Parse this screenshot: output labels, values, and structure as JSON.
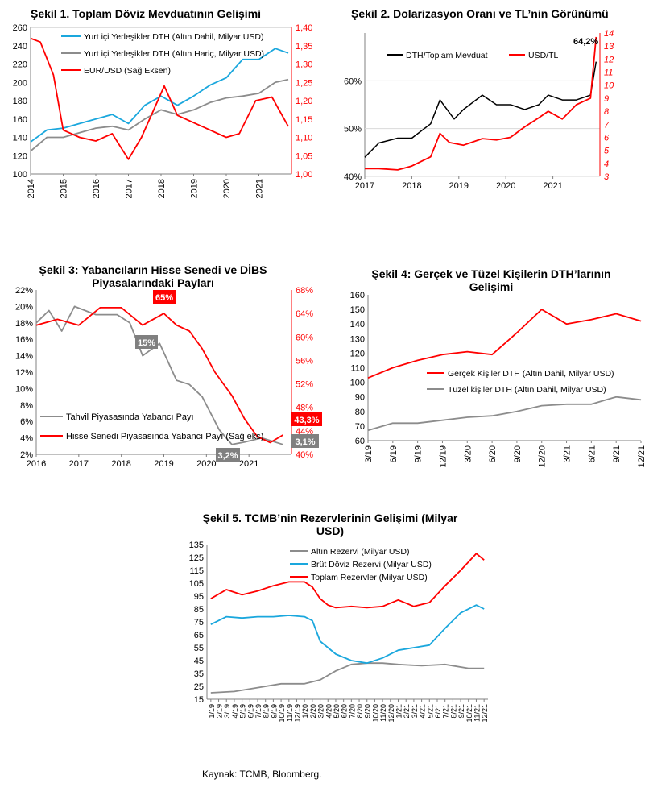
{
  "colors": {
    "red": "#ff0000",
    "blue": "#1aa7dd",
    "gray": "#8c8c8c",
    "black": "#000000"
  },
  "source": "Kaynak: TCMB, Bloomberg.",
  "chart_data": [
    {
      "id": "c1",
      "type": "line",
      "title": "Şekil 1. Toplam Döviz Mevduatının Gelişimi",
      "x_ticks": [
        "2014",
        "2015",
        "2016",
        "2017",
        "2018",
        "2019",
        "2020",
        "2021"
      ],
      "ylim": [
        100,
        260
      ],
      "y_ticks": [
        "100",
        "120",
        "140",
        "160",
        "180",
        "200",
        "220",
        "240",
        "260"
      ],
      "y2lim": [
        1.0,
        1.4
      ],
      "y2_ticks": [
        "1,00",
        "1,05",
        "1,10",
        "1,15",
        "1,20",
        "1,25",
        "1,30",
        "1,35",
        "1,40"
      ],
      "legend_position": "top",
      "series": [
        {
          "name": "Yurt içi Yerleşikler DTH (Altın Dahil, Milyar USD)",
          "color": "blue",
          "axis": "left",
          "x": [
            2014.0,
            2014.5,
            2015.0,
            2015.5,
            2016.0,
            2016.5,
            2017.0,
            2017.5,
            2018.0,
            2018.5,
            2019.0,
            2019.5,
            2020.0,
            2020.5,
            2021.0,
            2021.5,
            2021.9
          ],
          "values": [
            135,
            148,
            150,
            155,
            160,
            165,
            155,
            175,
            185,
            175,
            185,
            197,
            205,
            225,
            225,
            237,
            232
          ]
        },
        {
          "name": "Yurt içi Yerleşikler DTH (Altın Hariç, Milyar USD)",
          "color": "gray",
          "axis": "left",
          "x": [
            2014.0,
            2014.5,
            2015.0,
            2015.5,
            2016.0,
            2016.5,
            2017.0,
            2017.5,
            2018.0,
            2018.5,
            2019.0,
            2019.5,
            2020.0,
            2020.5,
            2021.0,
            2021.5,
            2021.9
          ],
          "values": [
            125,
            140,
            140,
            145,
            150,
            152,
            148,
            160,
            170,
            165,
            170,
            178,
            183,
            185,
            188,
            200,
            203
          ]
        },
        {
          "name": "EUR/USD (Sağ Eksen)",
          "color": "red",
          "axis": "right",
          "x": [
            2014.0,
            2014.3,
            2014.7,
            2015.0,
            2015.5,
            2016.0,
            2016.5,
            2017.0,
            2017.4,
            2017.8,
            2018.1,
            2018.5,
            2019.0,
            2019.5,
            2020.0,
            2020.4,
            2020.9,
            2021.4,
            2021.9
          ],
          "values": [
            1.37,
            1.36,
            1.27,
            1.12,
            1.1,
            1.09,
            1.11,
            1.04,
            1.1,
            1.18,
            1.24,
            1.16,
            1.14,
            1.12,
            1.1,
            1.11,
            1.2,
            1.21,
            1.13
          ]
        }
      ]
    },
    {
      "id": "c2",
      "type": "line",
      "title": "Şekil 2. Dolarizasyon Oranı ve TL’nin Görünümü",
      "x_ticks": [
        "2017",
        "2018",
        "2019",
        "2020",
        "2021"
      ],
      "ylim": [
        40,
        70
      ],
      "y_ticks": [
        "40%",
        "50%",
        "60%"
      ],
      "y2lim": [
        3,
        14
      ],
      "y2_ticks": [
        "3",
        "4",
        "5",
        "6",
        "7",
        "8",
        "9",
        "10",
        "11",
        "12",
        "13",
        "14"
      ],
      "annotation": "64,2%",
      "legend_position": "top",
      "series": [
        {
          "name": "DTH/Toplam Mevduat",
          "color": "black",
          "axis": "left",
          "x": [
            2017.0,
            2017.3,
            2017.7,
            2018.0,
            2018.4,
            2018.6,
            2018.9,
            2019.1,
            2019.5,
            2019.8,
            2020.1,
            2020.4,
            2020.7,
            2020.9,
            2021.2,
            2021.5,
            2021.8,
            2021.92
          ],
          "values": [
            44,
            47,
            48,
            48,
            51,
            56,
            52,
            54,
            57,
            55,
            55,
            54,
            55,
            57,
            56,
            56,
            57,
            64
          ]
        },
        {
          "name": "USD/TL",
          "color": "red",
          "axis": "right",
          "x": [
            2017.0,
            2017.3,
            2017.7,
            2018.0,
            2018.4,
            2018.6,
            2018.8,
            2019.1,
            2019.5,
            2019.8,
            2020.1,
            2020.4,
            2020.7,
            2020.9,
            2021.2,
            2021.5,
            2021.8,
            2021.92
          ],
          "values": [
            3.6,
            3.6,
            3.5,
            3.8,
            4.5,
            6.3,
            5.6,
            5.4,
            5.9,
            5.8,
            6.0,
            6.8,
            7.5,
            8.0,
            7.4,
            8.5,
            9.0,
            13.7
          ]
        }
      ]
    },
    {
      "id": "c3",
      "type": "line",
      "title": "Şekil 3: Yabancıların Hisse Senedi ve DİBS Piyasalarındaki Payları",
      "x_ticks": [
        "2016",
        "2017",
        "2018",
        "2019",
        "2020",
        "2021"
      ],
      "ylim": [
        2,
        22
      ],
      "y_ticks": [
        "2%",
        "4%",
        "6%",
        "8%",
        "10%",
        "12%",
        "14%",
        "16%",
        "18%",
        "20%",
        "22%"
      ],
      "y2lim": [
        40,
        68
      ],
      "y2_ticks": [
        "40%",
        "44%",
        "48%",
        "52%",
        "56%",
        "60%",
        "64%",
        "68%"
      ],
      "labels": [
        "65%",
        "15%",
        "3,2%",
        "43,3%",
        "3,1%"
      ],
      "legend_position": "bottom-left",
      "series": [
        {
          "name": "Tahvil Piyasasında Yabancı Payı",
          "color": "gray",
          "axis": "left",
          "x": [
            2016.0,
            2016.3,
            2016.6,
            2016.9,
            2017.4,
            2017.9,
            2018.2,
            2018.5,
            2018.9,
            2019.3,
            2019.6,
            2019.9,
            2020.3,
            2020.6,
            2020.9,
            2021.3,
            2021.8
          ],
          "values": [
            18,
            19.5,
            17,
            20,
            19,
            19,
            18,
            14,
            15.5,
            11,
            10.5,
            9,
            5,
            3.2,
            3.5,
            4,
            3.2
          ]
        },
        {
          "name": "Hisse Senedi Piyasasında Yabancı Payı (Sağ eks)",
          "color": "red",
          "axis": "right",
          "x": [
            2016.0,
            2016.5,
            2017.0,
            2017.5,
            2018.0,
            2018.5,
            2019.0,
            2019.3,
            2019.6,
            2019.9,
            2020.2,
            2020.6,
            2020.9,
            2021.2,
            2021.5,
            2021.8
          ],
          "values": [
            62,
            63,
            62,
            65,
            65,
            62,
            64,
            62,
            61,
            58,
            54,
            50,
            46,
            43,
            42,
            43.3
          ]
        }
      ]
    },
    {
      "id": "c4",
      "type": "line",
      "title": "Şekil 4: Gerçek ve Tüzel Kişilerin DTH’larının Gelişimi",
      "x_ticks": [
        "3/19",
        "6/19",
        "9/19",
        "12/19",
        "3/20",
        "6/20",
        "9/20",
        "12/20",
        "3/21",
        "6/21",
        "9/21",
        "12/21"
      ],
      "ylim": [
        60,
        160
      ],
      "y_ticks": [
        "60",
        "70",
        "80",
        "90",
        "100",
        "110",
        "120",
        "130",
        "140",
        "150",
        "160"
      ],
      "legend_position": "middle",
      "series": [
        {
          "name": "Gerçek Kişiler DTH (Altın Dahil, Milyar USD)",
          "color": "red",
          "x": [
            0,
            1,
            2,
            3,
            4,
            5,
            6,
            7,
            8,
            9,
            10,
            11
          ],
          "values": [
            103,
            110,
            115,
            119,
            121,
            119,
            134,
            150,
            140,
            143,
            147,
            142
          ]
        },
        {
          "name": "Tüzel kişiler DTH (Altın Dahil, Milyar USD)",
          "color": "gray",
          "x": [
            0,
            1,
            2,
            3,
            4,
            5,
            6,
            7,
            8,
            9,
            10,
            11
          ],
          "values": [
            67,
            72,
            72,
            74,
            76,
            77,
            80,
            84,
            85,
            85,
            90,
            88
          ]
        }
      ]
    },
    {
      "id": "c5",
      "type": "line",
      "title": "Şekil 5. TCMB’nin Rezervlerinin Gelişimi (Milyar USD)",
      "x_ticks": [
        "1/19",
        "2/19",
        "3/19",
        "4/19",
        "5/19",
        "6/19",
        "7/19",
        "8/19",
        "9/19",
        "10/19",
        "11/19",
        "12/19",
        "1/20",
        "2/20",
        "3/20",
        "4/20",
        "5/20",
        "6/20",
        "7/20",
        "8/20",
        "9/20",
        "10/20",
        "11/20",
        "12/20",
        "1/21",
        "2/21",
        "3/21",
        "4/21",
        "5/21",
        "6/21",
        "7/21",
        "8/21",
        "9/21",
        "10/21",
        "11/21",
        "12/21"
      ],
      "ylim": [
        15,
        135
      ],
      "y_ticks": [
        "15",
        "25",
        "35",
        "45",
        "55",
        "65",
        "75",
        "85",
        "95",
        "105",
        "115",
        "125",
        "135"
      ],
      "legend_position": "top",
      "series": [
        {
          "name": "Altın Rezervi (Milyar USD)",
          "color": "gray",
          "x": [
            0,
            3,
            6,
            9,
            12,
            14,
            16,
            18,
            20,
            22,
            24,
            27,
            30,
            33,
            35
          ],
          "values": [
            20,
            21,
            24,
            27,
            27,
            30,
            37,
            42,
            43,
            43,
            42,
            41,
            42,
            39,
            39
          ]
        },
        {
          "name": "Brüt Döviz Rezervi (Milyar USD)",
          "color": "blue",
          "x": [
            0,
            2,
            4,
            6,
            8,
            10,
            12,
            13,
            14,
            15,
            16,
            18,
            20,
            22,
            24,
            26,
            28,
            30,
            32,
            34,
            35
          ],
          "values": [
            73,
            79,
            78,
            79,
            79,
            80,
            79,
            76,
            60,
            55,
            50,
            45,
            43,
            47,
            53,
            55,
            57,
            70,
            82,
            88,
            85
          ]
        },
        {
          "name": "Toplam Rezervler (Milyar USD)",
          "color": "red",
          "x": [
            0,
            2,
            4,
            6,
            8,
            10,
            12,
            13,
            14,
            15,
            16,
            18,
            20,
            22,
            24,
            26,
            28,
            30,
            32,
            34,
            35
          ],
          "values": [
            93,
            100,
            96,
            99,
            103,
            106,
            106,
            102,
            93,
            88,
            86,
            87,
            86,
            87,
            92,
            87,
            90,
            103,
            115,
            128,
            123
          ]
        }
      ]
    }
  ]
}
